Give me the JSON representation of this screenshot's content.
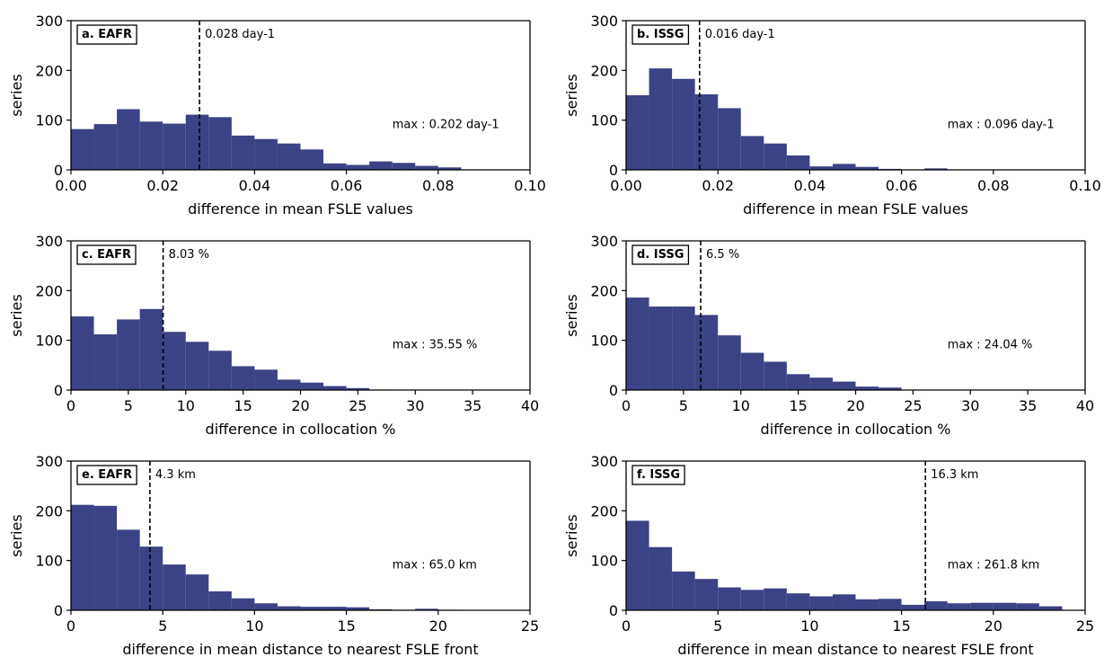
{
  "colors": {
    "bar": "#3b4285",
    "axis": "#000000",
    "median_line": "#000000"
  },
  "chart_data": [
    {
      "type": "bar",
      "panel_label": "a. EAFR",
      "xlabel": "difference in mean FSLE values",
      "ylabel": "series",
      "xlim": [
        0,
        0.1
      ],
      "ylim": [
        0,
        300
      ],
      "xticks": [
        0.0,
        0.02,
        0.04,
        0.06,
        0.08,
        0.1
      ],
      "xtick_labels": [
        "0.00",
        "0.02",
        "0.04",
        "0.06",
        "0.08",
        "0.10"
      ],
      "yticks": [
        0,
        100,
        200,
        300
      ],
      "ytick_labels": [
        "0",
        "100",
        "200",
        "300"
      ],
      "bin_edges": [
        0,
        0.005,
        0.01,
        0.015,
        0.02,
        0.025,
        0.03,
        0.035,
        0.04,
        0.045,
        0.05,
        0.055,
        0.06,
        0.065,
        0.07,
        0.075,
        0.08,
        0.085
      ],
      "values": [
        82,
        92,
        122,
        97,
        93,
        111,
        106,
        69,
        62,
        53,
        41,
        13,
        10,
        17,
        14,
        8,
        5
      ],
      "median": 0.028,
      "median_label": "0.028 day-1",
      "max_label": "max : 0.202 day-1"
    },
    {
      "type": "bar",
      "panel_label": "b. ISSG",
      "xlabel": "difference in mean FSLE values",
      "ylabel": "series",
      "xlim": [
        0,
        0.1
      ],
      "ylim": [
        0,
        300
      ],
      "xticks": [
        0.0,
        0.02,
        0.04,
        0.06,
        0.08,
        0.1
      ],
      "xtick_labels": [
        "0.00",
        "0.02",
        "0.04",
        "0.06",
        "0.08",
        "0.10"
      ],
      "yticks": [
        0,
        100,
        200,
        300
      ],
      "ytick_labels": [
        "0",
        "100",
        "200",
        "300"
      ],
      "bin_edges": [
        0,
        0.005,
        0.01,
        0.015,
        0.02,
        0.025,
        0.03,
        0.035,
        0.04,
        0.045,
        0.05,
        0.055,
        0.06,
        0.065,
        0.07
      ],
      "values": [
        150,
        204,
        183,
        152,
        124,
        68,
        53,
        29,
        7,
        12,
        6,
        2,
        0,
        3
      ],
      "median": 0.016,
      "median_label": "0.016 day-1",
      "max_label": "max : 0.096 day-1"
    },
    {
      "type": "bar",
      "panel_label": "c. EAFR",
      "xlabel": "difference in collocation %",
      "ylabel": "series",
      "xlim": [
        0,
        40
      ],
      "ylim": [
        0,
        300
      ],
      "xticks": [
        0,
        5,
        10,
        15,
        20,
        25,
        30,
        35,
        40
      ],
      "xtick_labels": [
        "0",
        "5",
        "10",
        "15",
        "20",
        "25",
        "30",
        "35",
        "40"
      ],
      "yticks": [
        0,
        100,
        200,
        300
      ],
      "ytick_labels": [
        "0",
        "100",
        "200",
        "300"
      ],
      "bin_edges": [
        0,
        2,
        4,
        6,
        8,
        10,
        12,
        14,
        16,
        18,
        20,
        22,
        24,
        26,
        28
      ],
      "values": [
        148,
        112,
        142,
        163,
        117,
        97,
        79,
        48,
        41,
        21,
        15,
        8,
        4,
        1
      ],
      "median": 8.03,
      "median_label": "8.03 %",
      "max_label": "max : 35.55 %"
    },
    {
      "type": "bar",
      "panel_label": "d. ISSG",
      "xlabel": "difference in collocation %",
      "ylabel": "series",
      "xlim": [
        0,
        40
      ],
      "ylim": [
        0,
        300
      ],
      "xticks": [
        0,
        5,
        10,
        15,
        20,
        25,
        30,
        35,
        40
      ],
      "xtick_labels": [
        "0",
        "5",
        "10",
        "15",
        "20",
        "25",
        "30",
        "35",
        "40"
      ],
      "yticks": [
        0,
        100,
        200,
        300
      ],
      "ytick_labels": [
        "0",
        "100",
        "200",
        "300"
      ],
      "bin_edges": [
        0,
        2,
        4,
        6,
        8,
        10,
        12,
        14,
        16,
        18,
        20,
        22,
        24
      ],
      "values": [
        186,
        168,
        168,
        151,
        110,
        75,
        57,
        32,
        25,
        17,
        7,
        5
      ],
      "median": 6.5,
      "median_label": "6.5 %",
      "max_label": "max : 24.04 %"
    },
    {
      "type": "bar",
      "panel_label": "e. EAFR",
      "xlabel": "difference in mean distance to nearest FSLE front",
      "ylabel": "series",
      "xlim": [
        0,
        25
      ],
      "ylim": [
        0,
        300
      ],
      "xticks": [
        0,
        5,
        10,
        15,
        20,
        25
      ],
      "xtick_labels": [
        "0",
        "5",
        "10",
        "15",
        "20",
        "25"
      ],
      "yticks": [
        0,
        100,
        200,
        300
      ],
      "ytick_labels": [
        "0",
        "100",
        "200",
        "300"
      ],
      "bin_edges": [
        0,
        1.25,
        2.5,
        3.75,
        5,
        6.25,
        7.5,
        8.75,
        10,
        11.25,
        12.5,
        13.75,
        15,
        16.25,
        17.5,
        18.75,
        20,
        21.25
      ],
      "values": [
        212,
        210,
        162,
        128,
        92,
        72,
        38,
        24,
        14,
        8,
        7,
        7,
        6,
        2,
        1,
        3,
        1
      ],
      "median": 4.3,
      "median_label": "4.3 km",
      "max_label": "max : 65.0 km"
    },
    {
      "type": "bar",
      "panel_label": "f. ISSG",
      "xlabel": "difference in mean distance to nearest FSLE front",
      "ylabel": "series",
      "xlim": [
        0,
        25
      ],
      "ylim": [
        0,
        300
      ],
      "xticks": [
        0,
        5,
        10,
        15,
        20,
        25
      ],
      "xtick_labels": [
        "0",
        "5",
        "10",
        "15",
        "20",
        "25"
      ],
      "yticks": [
        0,
        100,
        200,
        300
      ],
      "ytick_labels": [
        "0",
        "100",
        "200",
        "300"
      ],
      "bin_edges": [
        0,
        1.25,
        2.5,
        3.75,
        5,
        6.25,
        7.5,
        8.75,
        10,
        11.25,
        12.5,
        13.75,
        15,
        16.25,
        17.5,
        18.75,
        20,
        21.25,
        22.5,
        23.75
      ],
      "values": [
        180,
        127,
        78,
        63,
        46,
        41,
        44,
        34,
        28,
        32,
        22,
        23,
        11,
        18,
        14,
        15,
        15,
        14,
        8
      ],
      "median": 16.3,
      "median_label": "16.3 km",
      "max_label": "max : 261.8 km"
    }
  ]
}
